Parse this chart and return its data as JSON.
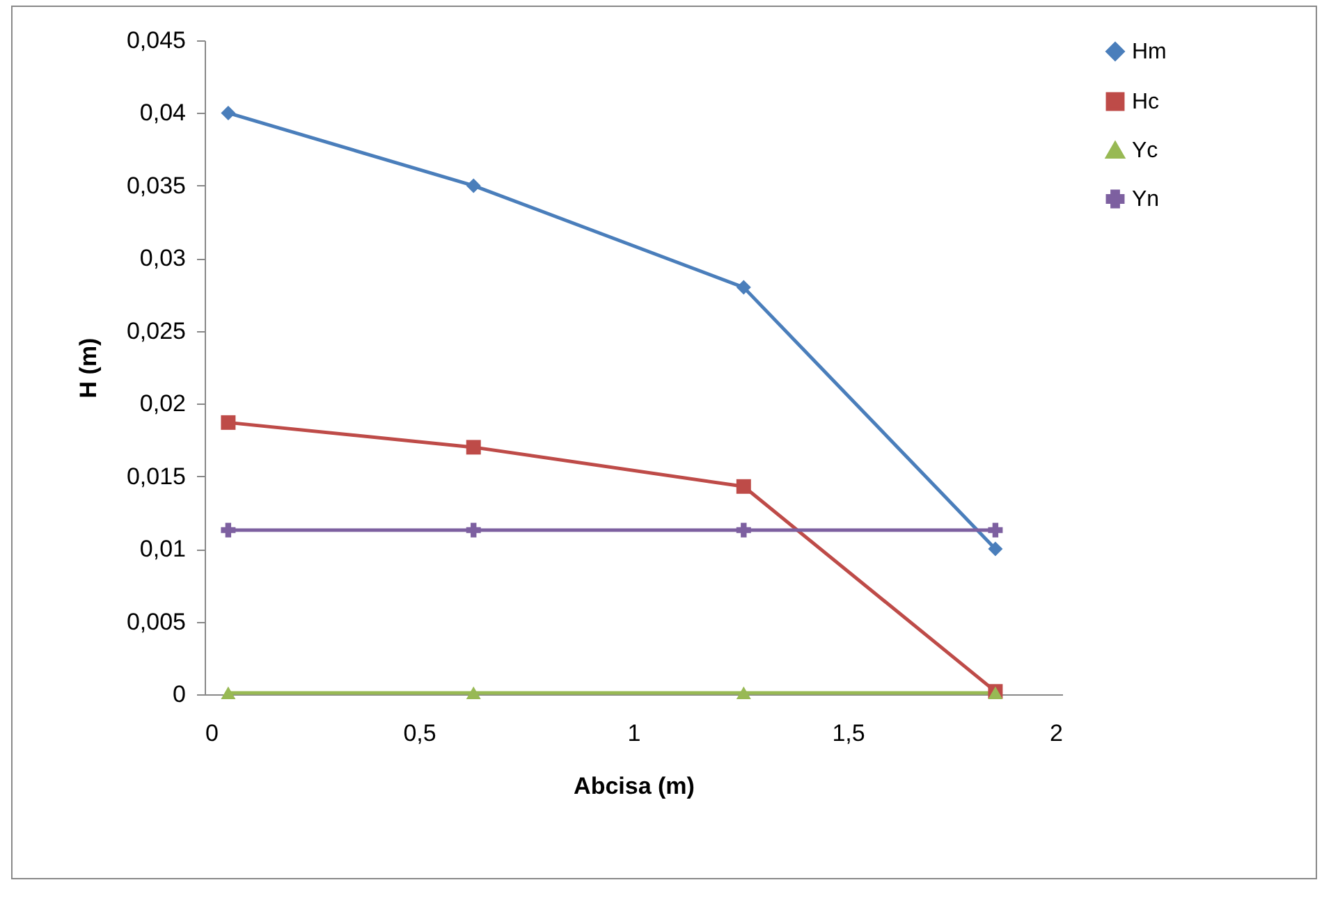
{
  "chart_data": {
    "type": "line",
    "xlabel": "Abcisa (m)",
    "ylabel": "H (m)",
    "x": [
      0.055,
      0.627,
      1.257,
      1.844
    ],
    "xlim": [
      0,
      2
    ],
    "xticks": [
      0,
      {
        "value": 0.5,
        "label": "0,5"
      },
      1,
      {
        "value": 1.5,
        "label": "1,5"
      },
      2
    ],
    "ylim": [
      0,
      0.045
    ],
    "yticks": [
      0,
      {
        "value": 0.005,
        "label": "0,005"
      },
      {
        "value": 0.01,
        "label": "0,01"
      },
      {
        "value": 0.015,
        "label": "0,015"
      },
      {
        "value": 0.02,
        "label": "0,02"
      },
      {
        "value": 0.025,
        "label": "0,025"
      },
      {
        "value": 0.03,
        "label": "0,03"
      },
      {
        "value": 0.035,
        "label": "0,035"
      },
      {
        "value": 0.04,
        "label": "0,04"
      },
      {
        "value": 0.045,
        "label": "0,045"
      }
    ],
    "grid": false,
    "legend": "right",
    "line_style": "solid",
    "series": [
      {
        "name": "Hm",
        "color": "#4a7ebb",
        "marker": "diamond",
        "values": [
          0.04,
          0.035,
          0.028,
          0.01
        ]
      },
      {
        "name": "Hc",
        "color": "#be4b48",
        "marker": "square",
        "values": [
          0.0187,
          0.017,
          0.0143,
          0.0002
        ]
      },
      {
        "name": "Yc",
        "color": "#98b954",
        "marker": "triangle",
        "values": [
          0.0001,
          0.0001,
          0.0001,
          0.0001
        ]
      },
      {
        "name": "Yn",
        "color": "#7d60a0",
        "marker": "cross",
        "values": [
          0.0113,
          0.0113,
          0.0113,
          0.0113
        ]
      }
    ]
  }
}
